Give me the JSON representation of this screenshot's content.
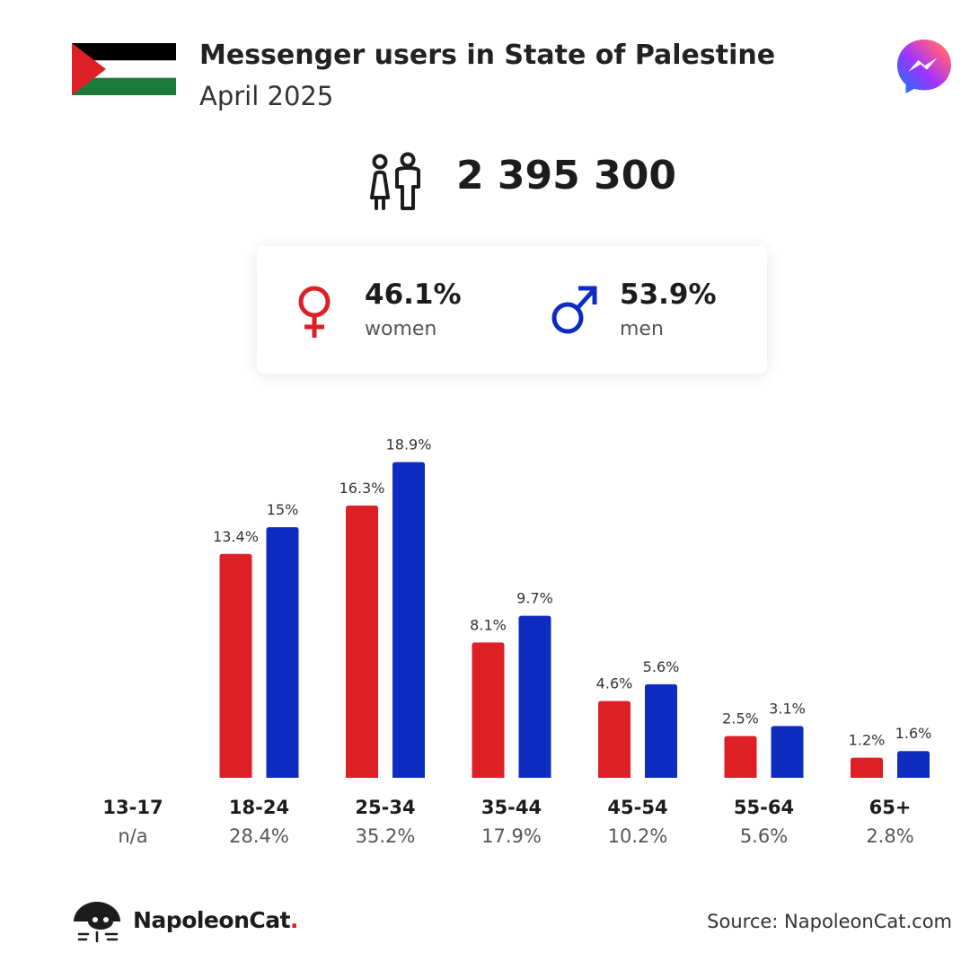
{
  "header": {
    "title": "Messenger users in State of Palestine",
    "subtitle": "April 2025"
  },
  "icons": {
    "flag": "palestine-flag-icon",
    "app": "messenger-logo-icon",
    "users": "users-icon",
    "female": "female-symbol-icon",
    "male": "male-symbol-icon",
    "brand": "napoleoncat-logo-icon"
  },
  "totals": {
    "users": "2 395 300"
  },
  "gender": {
    "women_pct": "46.1%",
    "women_label": "women",
    "men_pct": "53.9%",
    "men_label": "men"
  },
  "colors": {
    "women": "#dd1f26",
    "men": "#0f2cc1",
    "flag_black": "#000000",
    "flag_white": "#ffffff",
    "flag_green": "#1c7a3b",
    "flag_red": "#dd1f26"
  },
  "chart_data": {
    "type": "bar",
    "categories": [
      "13-17",
      "18-24",
      "25-34",
      "35-44",
      "45-54",
      "55-64",
      "65+"
    ],
    "category_totals": [
      "n/a",
      "28.4%",
      "35.2%",
      "17.9%",
      "10.2%",
      "5.6%",
      "2.8%"
    ],
    "series": [
      {
        "name": "women",
        "values": [
          null,
          13.4,
          16.3,
          8.1,
          4.6,
          2.5,
          1.2
        ],
        "labels": [
          "",
          "13.4%",
          "16.3%",
          "8.1%",
          "4.6%",
          "2.5%",
          "1.2%"
        ]
      },
      {
        "name": "men",
        "values": [
          null,
          15,
          18.9,
          9.7,
          5.6,
          3.1,
          1.6
        ],
        "labels": [
          "",
          "15%",
          "18.9%",
          "9.7%",
          "5.6%",
          "3.1%",
          "1.6%"
        ]
      }
    ],
    "title": "",
    "xlabel": "",
    "ylabel": "",
    "grid": false,
    "legend": "none"
  },
  "footer": {
    "brand_name": "NapoleonCat",
    "brand_dot": ".",
    "source": "Source: NapoleonCat.com"
  }
}
